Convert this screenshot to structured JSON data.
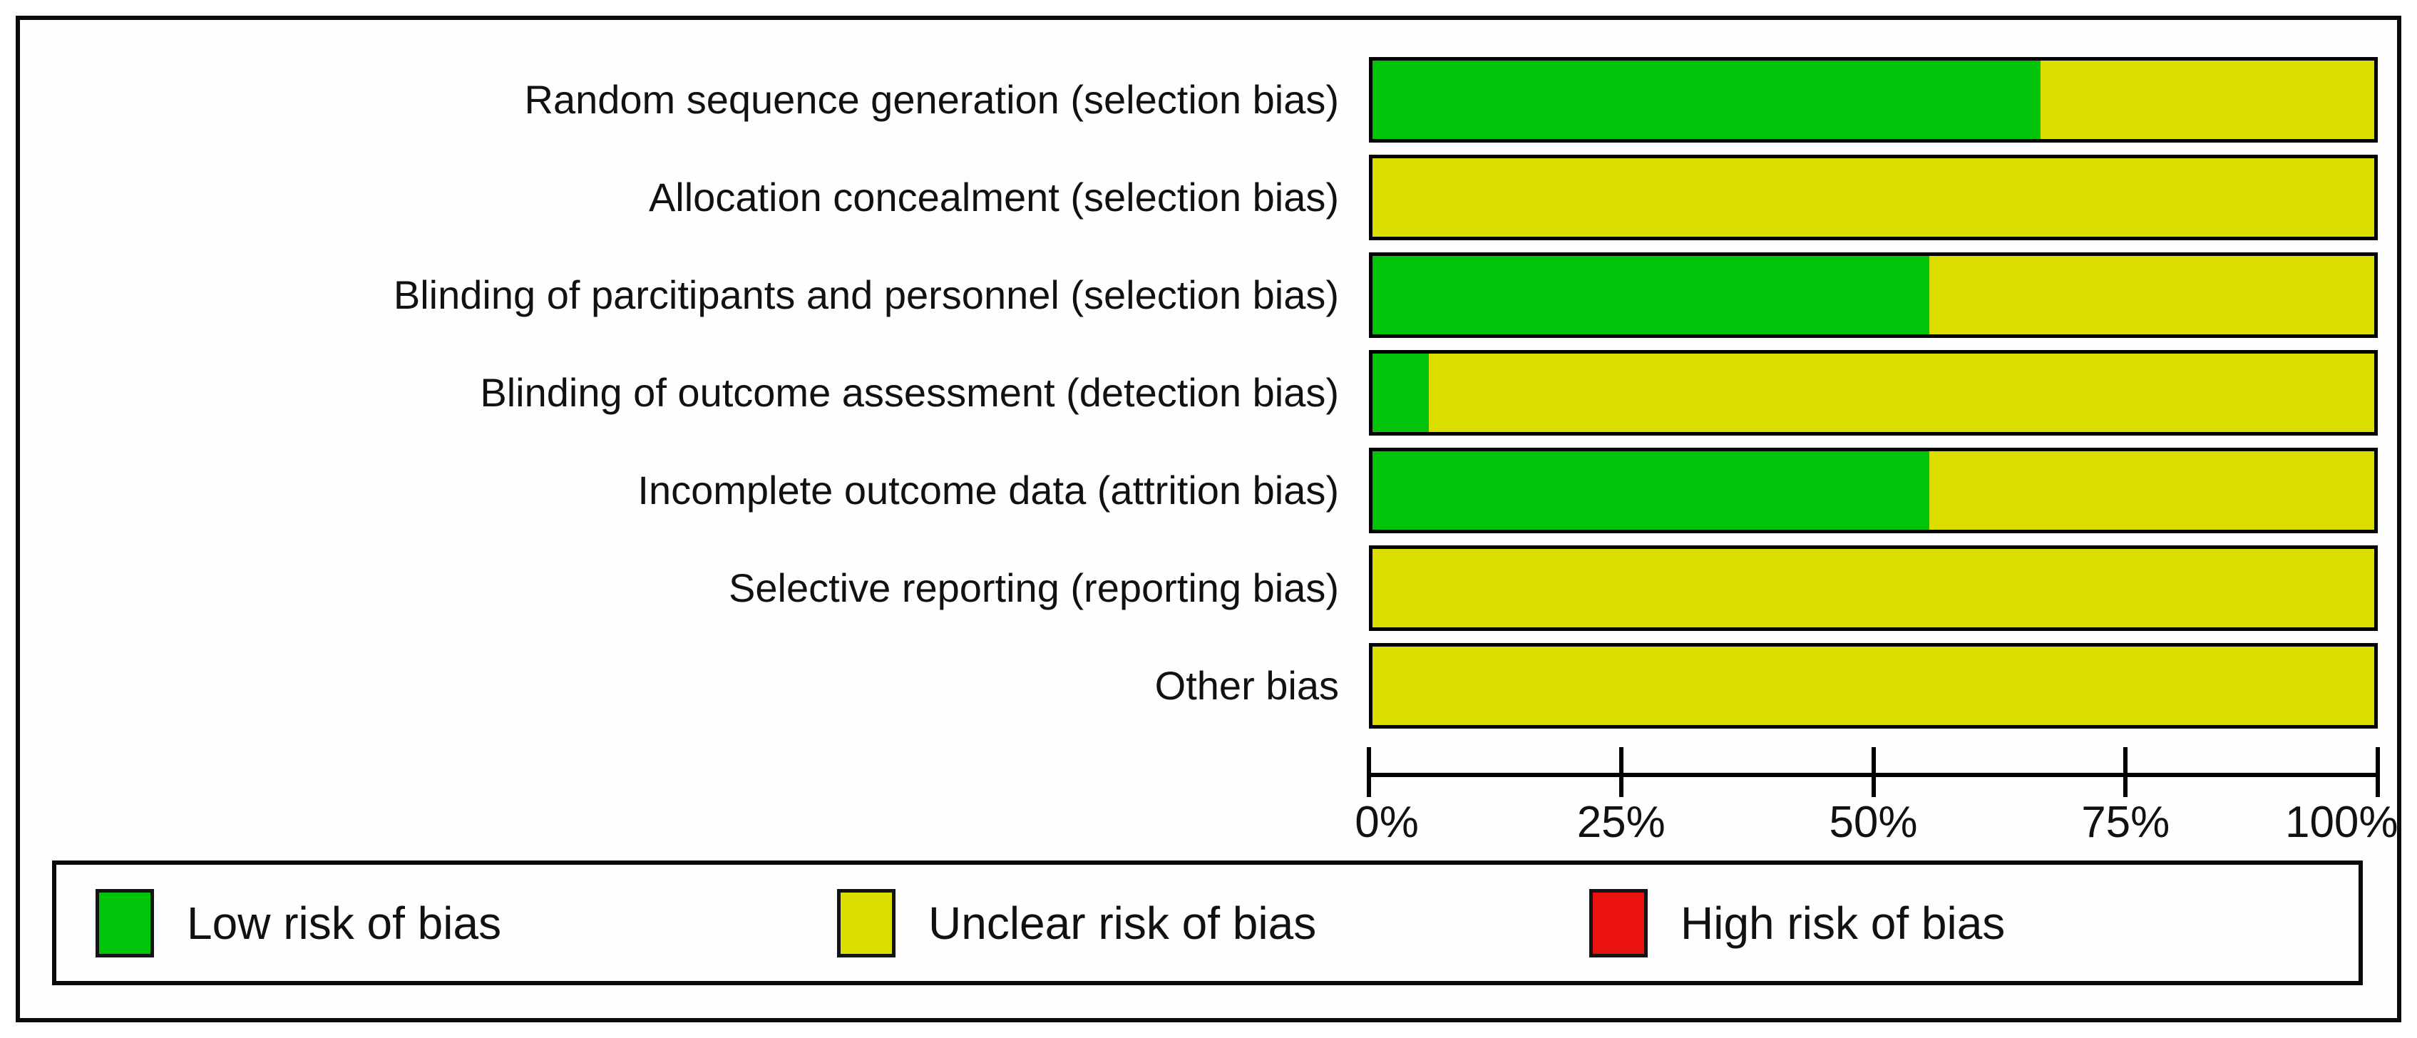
{
  "chart_data": {
    "type": "bar",
    "orientation": "horizontal",
    "stacked": true,
    "unit": "percent",
    "title": "",
    "categories": [
      "Random sequence generation (selection bias)",
      "Allocation concealment (selection bias)",
      "Blinding of parcitipants and personnel (selection bias)",
      "Blinding of outcome assessment (detection bias)",
      "Incomplete outcome data (attrition bias)",
      "Selective reporting (reporting bias)",
      "Other bias"
    ],
    "series": [
      {
        "name": "Low risk of bias",
        "color": "#00C30A",
        "values": [
          66.7,
          0,
          55.6,
          5.6,
          55.6,
          0,
          0
        ]
      },
      {
        "name": "Unclear risk of bias",
        "color": "#DCDE00",
        "values": [
          33.3,
          100,
          44.4,
          94.4,
          44.4,
          100,
          100
        ]
      },
      {
        "name": "High risk of bias",
        "color": "#EA1111",
        "values": [
          0,
          0,
          0,
          0,
          0,
          0,
          0
        ]
      }
    ],
    "x_axis": {
      "range": [
        0,
        100
      ],
      "ticks": [
        0,
        25,
        50,
        75,
        100
      ],
      "tick_labels": [
        "0%",
        "25%",
        "50%",
        "75%",
        "100%"
      ]
    },
    "grid": false,
    "legend_position": "bottom"
  },
  "legend": {
    "items": [
      {
        "label": "Low risk of bias",
        "color": "#00C30A"
      },
      {
        "label": "Unclear risk of bias",
        "color": "#DCDE00"
      },
      {
        "label": "High risk of bias",
        "color": "#EA1111"
      }
    ]
  },
  "colors": {
    "low_risk": "#00C30A",
    "unclear_risk": "#DCDE00",
    "high_risk": "#EA1111",
    "border": "#0a0a0a",
    "background": "#ffffff"
  }
}
